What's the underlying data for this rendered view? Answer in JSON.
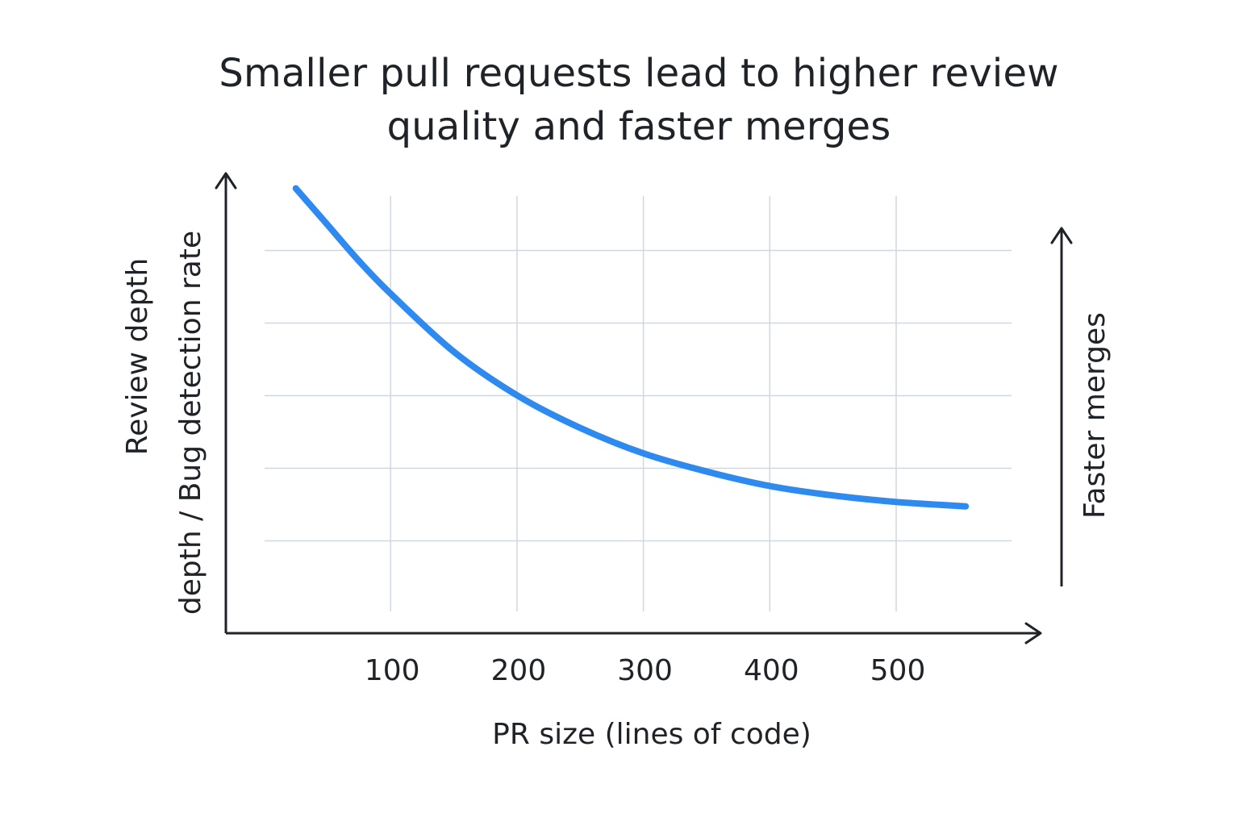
{
  "chart_data": {
    "type": "line",
    "title_lines": [
      "Smaller pull requests lead to higher review",
      "quality and faster merges"
    ],
    "xlabel": "PR size (lines of code)",
    "ylabel_lines": [
      "Review depth",
      "depth / Bug detection rate"
    ],
    "secondary_ylabel": "Faster merges",
    "x_ticks": [
      100,
      200,
      300,
      400,
      500
    ],
    "xlim": [
      -80,
      520
    ],
    "ylim": [
      0,
      6
    ],
    "grid": true,
    "y_ticks_labeled": false,
    "series": [
      {
        "color": "#2f8af0",
        "x": [
          25,
          50,
          75,
          100,
          150,
          200,
          250,
          300,
          350,
          400,
          450,
          500,
          555
        ],
        "y": [
          5.85,
          5.35,
          4.85,
          4.4,
          3.6,
          3.0,
          2.55,
          2.2,
          1.95,
          1.75,
          1.62,
          1.53,
          1.47
        ]
      }
    ]
  }
}
